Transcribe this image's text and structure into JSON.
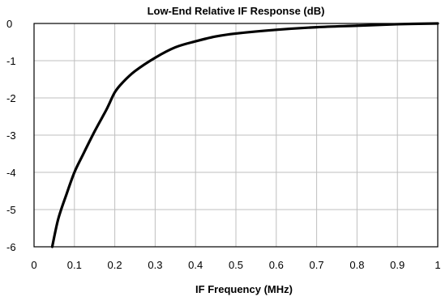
{
  "chart_data": {
    "type": "line",
    "title": "Low-End Relative IF Response (dB)",
    "xlabel": "IF Frequency  (MHz)",
    "ylabel": "",
    "xlim": [
      0,
      1
    ],
    "ylim": [
      -6,
      0
    ],
    "x_ticks": [
      0,
      0.1,
      0.2,
      0.3,
      0.4,
      0.5,
      0.6,
      0.7,
      0.8,
      0.9,
      1
    ],
    "x_tick_labels": [
      "0",
      "0.1",
      "0.2",
      "0.3",
      "0.4",
      "0.5",
      "0.6",
      "0.7",
      "0.8",
      "0.9",
      "1"
    ],
    "y_ticks": [
      0,
      -1,
      -2,
      -3,
      -4,
      -5,
      -6
    ],
    "y_tick_labels": [
      "0",
      "-1",
      "-2",
      "-3",
      "-4",
      "-5",
      "-6"
    ],
    "grid": true,
    "legend": "none",
    "series": [
      {
        "color": "#000000",
        "x": [
          0.045,
          0.06,
          0.08,
          0.1,
          0.12,
          0.15,
          0.18,
          0.2,
          0.22,
          0.25,
          0.3,
          0.35,
          0.4,
          0.45,
          0.5,
          0.6,
          0.7,
          0.8,
          0.9,
          1.0
        ],
        "y": [
          -6.0,
          -5.25,
          -4.6,
          -4.0,
          -3.55,
          -2.9,
          -2.3,
          -1.85,
          -1.58,
          -1.28,
          -0.92,
          -0.64,
          -0.48,
          -0.35,
          -0.27,
          -0.17,
          -0.1,
          -0.06,
          -0.02,
          0.0
        ]
      }
    ]
  }
}
